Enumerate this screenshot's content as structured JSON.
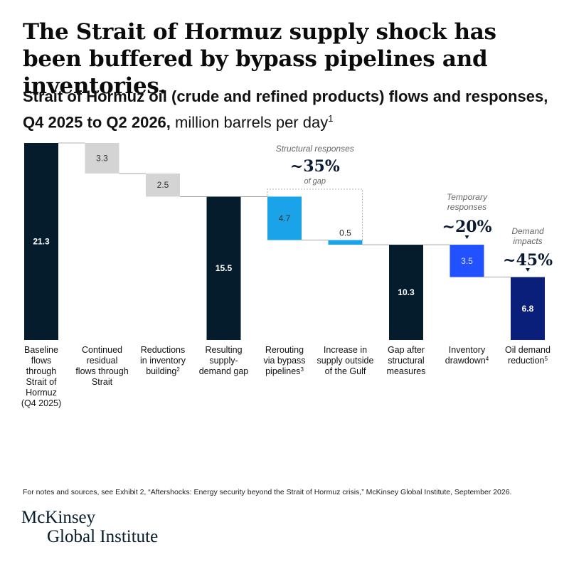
{
  "headline": "The Strait of Hormuz supply shock has been buffered by bypass pipelines and inventories.",
  "subtitle": {
    "bold": "Strait of Hormuz oil (crude and refined products) flows and responses, Q4 2025 to Q2 2026,",
    "unit": " million barrels per day",
    "footnote": "1"
  },
  "chart_data": {
    "type": "bar",
    "subtype": "waterfall",
    "ylim": [
      0,
      21.3
    ],
    "bars": [
      {
        "category_lines": [
          "Baseline",
          "flows",
          "through",
          "Strait of",
          "Hormuz",
          "(Q4 2025)"
        ],
        "footnote": "",
        "value": 21.3,
        "label": "21.3",
        "kind": "total",
        "start": 0,
        "end": 21.3,
        "color": "#051c2c"
      },
      {
        "category_lines": [
          "Continued",
          "residual",
          "flows through",
          "Strait"
        ],
        "footnote": "",
        "value": 3.3,
        "label": "3.3",
        "kind": "decrease",
        "start": 18.0,
        "end": 21.3,
        "color": "#d4d4d4"
      },
      {
        "category_lines": [
          "Reductions",
          "in inventory",
          "building"
        ],
        "footnote": "2",
        "value": 2.5,
        "label": "2.5",
        "kind": "decrease",
        "start": 15.5,
        "end": 18.0,
        "color": "#d4d4d4"
      },
      {
        "category_lines": [
          "Resulting",
          "supply-",
          "demand gap"
        ],
        "footnote": "",
        "value": 15.5,
        "label": "15.5",
        "kind": "total",
        "start": 0,
        "end": 15.5,
        "color": "#051c2c"
      },
      {
        "category_lines": [
          "Rerouting",
          "via bypass",
          "pipelines"
        ],
        "footnote": "3",
        "value": 4.7,
        "label": "4.7",
        "kind": "decrease",
        "start": 10.8,
        "end": 15.5,
        "color": "#1aa3e8"
      },
      {
        "category_lines": [
          "Increase in",
          "supply outside",
          "of the Gulf"
        ],
        "footnote": "",
        "value": 0.5,
        "label": "0.5",
        "kind": "decrease",
        "start": 10.3,
        "end": 10.8,
        "color": "#1aa3e8"
      },
      {
        "category_lines": [
          "Gap after",
          "structural",
          "measures"
        ],
        "footnote": "",
        "value": 10.3,
        "label": "10.3",
        "kind": "total",
        "start": 0,
        "end": 10.3,
        "color": "#051c2c"
      },
      {
        "category_lines": [
          "Inventory",
          "drawdown"
        ],
        "footnote": "4",
        "value": 3.5,
        "label": "3.5",
        "kind": "decrease",
        "start": 6.8,
        "end": 10.3,
        "color": "#2251ff"
      },
      {
        "category_lines": [
          "Oil demand",
          "reduction"
        ],
        "footnote": "5",
        "value": 6.8,
        "label": "6.8",
        "kind": "decrease",
        "start": 0,
        "end": 6.8,
        "color": "#0a1f7a"
      }
    ],
    "annotations": {
      "structural": {
        "title": "Structural responses",
        "value": "~35%",
        "sub": "of gap"
      },
      "temporary": {
        "title_lines": [
          "Temporary",
          "responses"
        ],
        "value": "~20%"
      },
      "demand": {
        "title_lines": [
          "Demand",
          "impacts"
        ],
        "value": "~45%"
      }
    }
  },
  "source_note": "For notes and sources, see Exhibit 2, “Aftershocks: Energy security beyond the Strait of Hormuz crisis,” McKinsey Global Institute, September 2026.",
  "logo": {
    "line1": "McKinsey",
    "line2": "Global Institute"
  }
}
